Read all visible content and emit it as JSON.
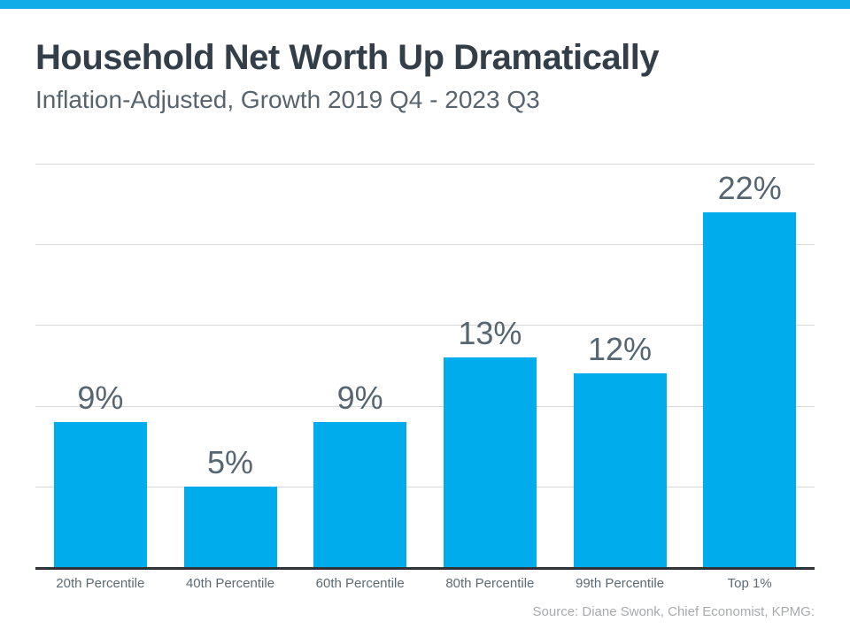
{
  "page": {
    "background": "#ffffff",
    "accent_strip_color": "#12ace9"
  },
  "header": {
    "title": "Household Net Worth Up Dramatically",
    "subtitle": "Inflation-Adjusted, Growth 2019 Q4 - 2023 Q3"
  },
  "chart_data": {
    "type": "bar",
    "title": "Household Net Worth Up Dramatically",
    "subtitle": "Inflation-Adjusted, Growth 2019 Q4 - 2023 Q3",
    "categories": [
      "20th Percentile",
      "40th Percentile",
      "60th Percentile",
      "80th Percentile",
      "99th Percentile",
      "Top 1%"
    ],
    "values": [
      9,
      5,
      9,
      13,
      12,
      22
    ],
    "data_labels": [
      "9%",
      "5%",
      "9%",
      "13%",
      "12%",
      "22%"
    ],
    "xlabel": "",
    "ylabel": "",
    "ylim": [
      0,
      25
    ],
    "gridline_step": 5,
    "grid": "horizontal-only",
    "legend": "none",
    "y_axis_tick_labels_shown": false,
    "bar_color": "#00acec",
    "value_label_color": "#566572",
    "category_label_color": "#5d6a73",
    "gridline_color": "#d8d8d8",
    "axis_line_color": "#2f3338"
  },
  "footer": {
    "source": "Source: Diane Swonk, Chief Economist, KPMG:"
  }
}
